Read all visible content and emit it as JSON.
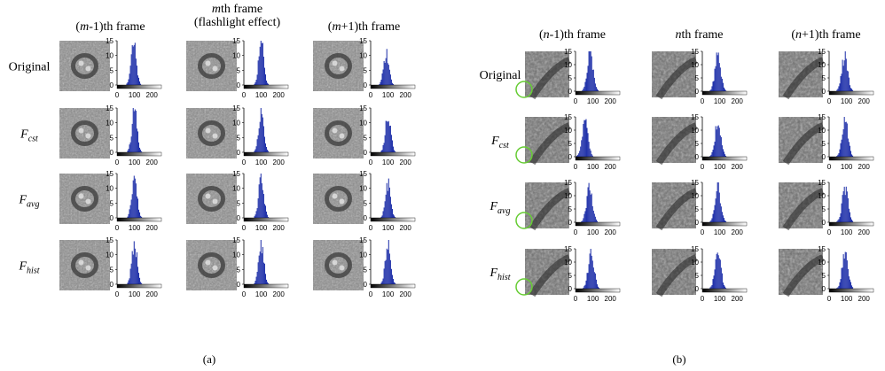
{
  "panels": [
    {
      "id": "a",
      "caption": "(a)",
      "column_titles": [
        {
          "lines": [
            "(m-1)th frame"
          ]
        },
        {
          "lines": [
            "mth frame",
            "(flashlight effect)"
          ]
        },
        {
          "lines": [
            "(m+1)th frame"
          ]
        }
      ],
      "row_labels": [
        "Original",
        "Fcst",
        "Favg",
        "Fhist"
      ],
      "flash_markers": false
    },
    {
      "id": "b",
      "caption": "(b)",
      "column_titles": [
        {
          "lines": [
            "(n-1)th frame"
          ]
        },
        {
          "lines": [
            "nth frame"
          ]
        },
        {
          "lines": [
            "(n+1)th frame"
          ]
        }
      ],
      "row_labels": [
        "Original",
        "Fcst",
        "Favg",
        "Fhist"
      ],
      "flash_markers": true
    }
  ],
  "histogram_axes": {
    "x_ticks": [
      "0",
      "100",
      "200"
    ],
    "y_ticks": [
      "0",
      "5",
      "10",
      "15"
    ],
    "xlim": [
      0,
      255
    ],
    "ylim": [
      0,
      15
    ]
  },
  "colors": {
    "bar": "#2233aa",
    "marker": "#66cc33"
  },
  "chart_data": {
    "type": "bar",
    "ylim": [
      0,
      15
    ],
    "xlim": [
      0,
      255
    ],
    "note_series": [
      {
        "name": "(m-1)th Original",
        "peak": 96,
        "height": 15
      },
      {
        "name": "mth Original",
        "peak": 100,
        "height": 15
      },
      {
        "name": "(m+1)th Original",
        "peak": 90,
        "height": 12
      },
      {
        "name": "(n-1)th Fcst",
        "peak": 55,
        "height": 15
      },
      {
        "name": "(n-1)th Favg",
        "peak": 85,
        "height": 14
      }
    ]
  }
}
